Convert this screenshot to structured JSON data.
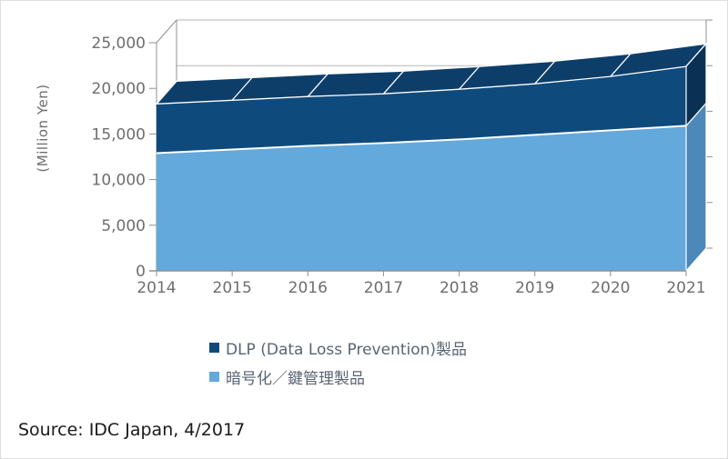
{
  "chart_data": {
    "type": "area",
    "variant": "3d-stacked-area",
    "title": "",
    "xlabel": "",
    "ylabel": "(Million Yen)",
    "categories": [
      "2014",
      "2015",
      "2016",
      "2017",
      "2018",
      "2019",
      "2020",
      "2021"
    ],
    "series": [
      {
        "name": "DLP (Data Loss Prevention)製品",
        "color": "#0f4a7d",
        "values": [
          5400,
          5400,
          5400,
          5400,
          5500,
          5600,
          5900,
          6500
        ]
      },
      {
        "name": "暗号化／鍵管理製品",
        "color": "#63a9dc",
        "values": [
          12900,
          13300,
          13700,
          14000,
          14400,
          14900,
          15400,
          15900
        ]
      }
    ],
    "stack_order_bottom_to_top": [
      "暗号化／鍵管理製品",
      "DLP (Data Loss Prevention)製品"
    ],
    "stacked_totals": [
      18300,
      18700,
      19100,
      19400,
      19900,
      20500,
      21300,
      22400
    ],
    "ylim": [
      0,
      25000
    ],
    "ytick_labels": [
      "0",
      "5,000",
      "10,000",
      "15,000",
      "20,000",
      "25,000"
    ],
    "grid": true,
    "legend_position": "below-chart",
    "palette": {
      "light_front": "#63a9dc",
      "light_side": "#4c88b9",
      "dark_front": "#0f4a7d",
      "dark_top": "#0d3e69",
      "dark_side": "#0a3154",
      "grid": "#b5b5b5",
      "axis": "#8f8f8f",
      "label": "#6e6e6e"
    }
  },
  "source": {
    "text": "Source: IDC Japan, 4/2017"
  }
}
